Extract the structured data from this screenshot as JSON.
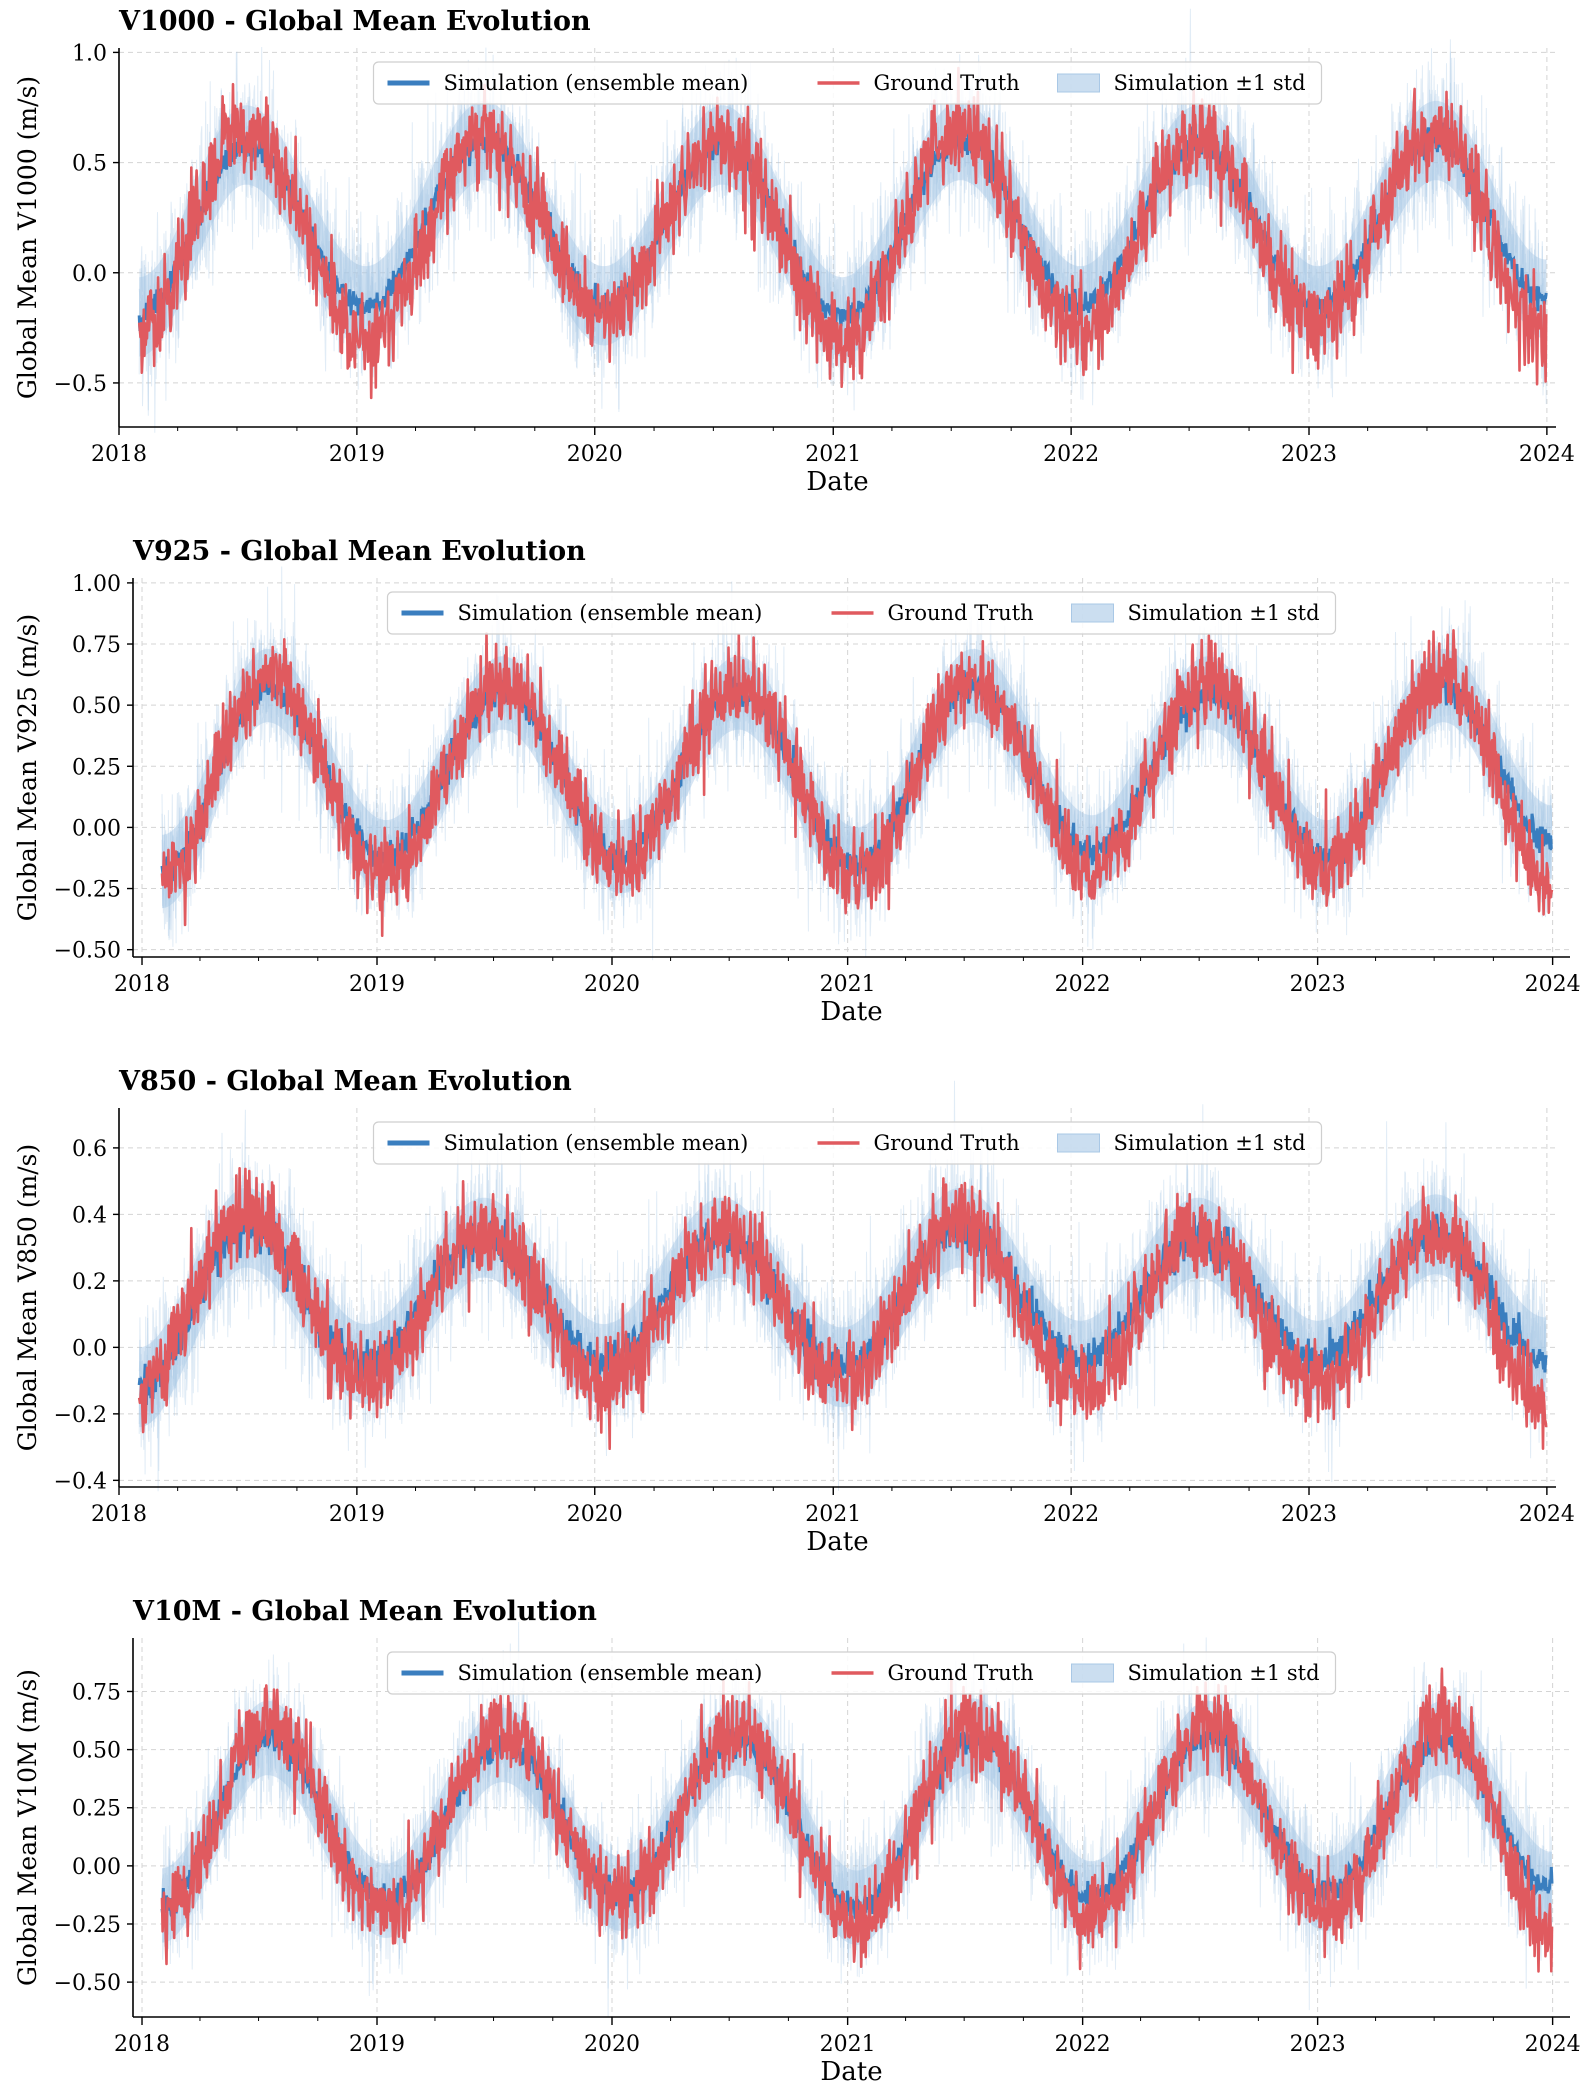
{
  "figure": {
    "legend_labels": {
      "mean": "Simulation (ensemble mean)",
      "truth": "Ground Truth",
      "band": "Simulation ±1 std"
    },
    "colors": {
      "simulation_mean": "#3a7ebf",
      "ground_truth": "#e05a5f",
      "std_band": "#a9c8e6",
      "grid": "#d4d4d4",
      "axis": "#000000"
    }
  },
  "chart_data": [
    {
      "type": "line",
      "title": "V1000 - Global Mean Evolution",
      "xlabel": "Date",
      "ylabel": "Global Mean V1000 (m/s)",
      "x_ticks": [
        "2018",
        "2019",
        "2020",
        "2021",
        "2022",
        "2023",
        "2024"
      ],
      "y_ticks": [
        -0.5,
        0.0,
        0.5,
        1.0
      ],
      "y_tick_labels": [
        "−0.5",
        "0.0",
        "0.5",
        "1.0"
      ],
      "xlim": [
        "2018-01-01",
        "2024-01-15"
      ],
      "ylim": [
        -0.7,
        1.02
      ],
      "grid": true,
      "legend_position": "top-center",
      "x_start": "2018-02-01",
      "x_end": "2023-12-31",
      "series": [
        {
          "name": "Simulation (ensemble mean)",
          "x": [
            "2018-02-01",
            "2018-07-15",
            "2019-01-15",
            "2019-07-15",
            "2020-01-15",
            "2020-07-15",
            "2021-01-15",
            "2021-07-15",
            "2022-01-15",
            "2022-07-15",
            "2023-01-15",
            "2023-07-15",
            "2023-12-31"
          ],
          "values": [
            -0.2,
            0.58,
            -0.15,
            0.6,
            -0.15,
            0.58,
            -0.2,
            0.6,
            -0.15,
            0.58,
            -0.15,
            0.6,
            -0.12
          ]
        },
        {
          "name": "Ground Truth",
          "x": [
            "2018-02-01",
            "2018-07-15",
            "2019-01-15",
            "2019-07-15",
            "2020-01-15",
            "2020-07-15",
            "2021-01-15",
            "2021-07-15",
            "2022-01-15",
            "2022-07-15",
            "2023-01-15",
            "2023-07-15",
            "2023-12-31"
          ],
          "values": [
            -0.25,
            0.65,
            -0.3,
            0.62,
            -0.2,
            0.6,
            -0.3,
            0.65,
            -0.25,
            0.62,
            -0.22,
            0.65,
            -0.3
          ]
        }
      ],
      "std": 0.18
    },
    {
      "type": "line",
      "title": "V925 - Global Mean Evolution",
      "xlabel": "Date",
      "ylabel": "Global Mean V925 (m/s)",
      "x_ticks": [
        "2018",
        "2019",
        "2020",
        "2021",
        "2022",
        "2023",
        "2024"
      ],
      "y_ticks": [
        -0.5,
        -0.25,
        0.0,
        0.25,
        0.5,
        0.75,
        1.0
      ],
      "y_tick_labels": [
        "−0.50",
        "−0.25",
        "0.00",
        "0.25",
        "0.50",
        "0.75",
        "1.00"
      ],
      "xlim": [
        "2017-12-18",
        "2024-01-28"
      ],
      "ylim": [
        -0.53,
        1.02
      ],
      "grid": true,
      "legend_position": "top-center",
      "x_start": "2018-02-01",
      "x_end": "2023-12-31",
      "series": [
        {
          "name": "Simulation (ensemble mean)",
          "x": [
            "2018-02-01",
            "2018-07-15",
            "2019-01-15",
            "2019-07-15",
            "2020-01-15",
            "2020-07-15",
            "2021-01-15",
            "2021-07-15",
            "2022-01-15",
            "2022-07-15",
            "2023-01-15",
            "2023-07-15",
            "2023-12-31"
          ],
          "values": [
            -0.18,
            0.58,
            -0.12,
            0.55,
            -0.12,
            0.55,
            -0.15,
            0.58,
            -0.1,
            0.55,
            -0.12,
            0.58,
            -0.06
          ]
        },
        {
          "name": "Ground Truth",
          "x": [
            "2018-02-01",
            "2018-07-15",
            "2019-01-15",
            "2019-07-15",
            "2020-01-15",
            "2020-07-15",
            "2021-01-15",
            "2021-07-15",
            "2022-01-15",
            "2022-07-15",
            "2023-01-15",
            "2023-07-15",
            "2023-12-31"
          ],
          "values": [
            -0.2,
            0.62,
            -0.2,
            0.6,
            -0.15,
            0.58,
            -0.2,
            0.6,
            -0.18,
            0.6,
            -0.15,
            0.6,
            -0.22
          ]
        }
      ],
      "std": 0.15
    },
    {
      "type": "line",
      "title": "V850 - Global Mean Evolution",
      "xlabel": "Date",
      "ylabel": "Global Mean V850 (m/s)",
      "x_ticks": [
        "2018",
        "2019",
        "2020",
        "2021",
        "2022",
        "2023",
        "2024"
      ],
      "y_ticks": [
        -0.4,
        -0.2,
        0.0,
        0.2,
        0.4,
        0.6
      ],
      "y_tick_labels": [
        "−0.4",
        "−0.2",
        "0.0",
        "0.2",
        "0.4",
        "0.6"
      ],
      "xlim": [
        "2018-01-01",
        "2024-01-15"
      ],
      "ylim": [
        -0.42,
        0.72
      ],
      "grid": true,
      "legend_position": "top-center",
      "x_start": "2018-02-01",
      "x_end": "2023-12-31",
      "series": [
        {
          "name": "Simulation (ensemble mean)",
          "x": [
            "2018-02-01",
            "2018-07-15",
            "2019-01-15",
            "2019-07-15",
            "2020-01-15",
            "2020-07-15",
            "2021-01-15",
            "2021-07-15",
            "2022-01-15",
            "2022-07-15",
            "2023-01-15",
            "2023-07-15",
            "2023-12-31"
          ],
          "values": [
            -0.12,
            0.36,
            -0.05,
            0.33,
            -0.05,
            0.33,
            -0.06,
            0.36,
            -0.04,
            0.33,
            -0.04,
            0.34,
            -0.03
          ]
        },
        {
          "name": "Ground Truth",
          "x": [
            "2018-02-01",
            "2018-07-15",
            "2019-01-15",
            "2019-07-15",
            "2020-01-15",
            "2020-07-15",
            "2021-01-15",
            "2021-07-15",
            "2022-01-15",
            "2022-07-15",
            "2023-01-15",
            "2023-07-15",
            "2023-12-31"
          ],
          "values": [
            -0.12,
            0.4,
            -0.1,
            0.35,
            -0.1,
            0.35,
            -0.1,
            0.38,
            -0.12,
            0.33,
            -0.12,
            0.35,
            -0.15
          ]
        }
      ],
      "std": 0.12
    },
    {
      "type": "line",
      "title": "V10M - Global Mean Evolution",
      "xlabel": "Date",
      "ylabel": "Global Mean V10M (m/s)",
      "x_ticks": [
        "2018",
        "2019",
        "2020",
        "2021",
        "2022",
        "2023",
        "2024"
      ],
      "y_ticks": [
        -0.5,
        -0.25,
        0.0,
        0.25,
        0.5,
        0.75
      ],
      "y_tick_labels": [
        "−0.50",
        "−0.25",
        "0.00",
        "0.25",
        "0.50",
        "0.75"
      ],
      "xlim": [
        "2017-12-18",
        "2024-01-28"
      ],
      "ylim": [
        -0.65,
        0.98
      ],
      "grid": true,
      "legend_position": "top-center",
      "x_start": "2018-02-01",
      "x_end": "2023-12-31",
      "series": [
        {
          "name": "Simulation (ensemble mean)",
          "x": [
            "2018-02-01",
            "2018-07-15",
            "2019-01-15",
            "2019-07-15",
            "2020-01-15",
            "2020-07-15",
            "2021-01-15",
            "2021-07-15",
            "2022-01-15",
            "2022-07-15",
            "2023-01-15",
            "2023-07-15",
            "2023-12-31"
          ],
          "values": [
            -0.17,
            0.55,
            -0.15,
            0.52,
            -0.12,
            0.55,
            -0.18,
            0.56,
            -0.14,
            0.55,
            -0.12,
            0.55,
            -0.1
          ]
        },
        {
          "name": "Ground Truth",
          "x": [
            "2018-02-01",
            "2018-07-15",
            "2019-01-15",
            "2019-07-15",
            "2020-01-15",
            "2020-07-15",
            "2021-01-15",
            "2021-07-15",
            "2022-01-15",
            "2022-07-15",
            "2023-01-15",
            "2023-07-15",
            "2023-12-31"
          ],
          "values": [
            -0.2,
            0.6,
            -0.2,
            0.58,
            -0.15,
            0.58,
            -0.25,
            0.6,
            -0.22,
            0.62,
            -0.2,
            0.62,
            -0.28
          ]
        }
      ],
      "std": 0.16
    }
  ]
}
